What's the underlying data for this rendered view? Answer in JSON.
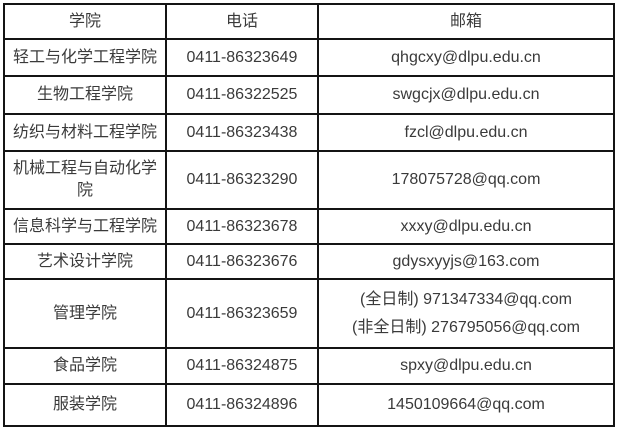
{
  "colors": {
    "background": "#ffffff",
    "border": "#141414",
    "text": "#3a3a3a"
  },
  "table": {
    "headers": [
      "学院",
      "电话",
      "邮箱"
    ],
    "rows": [
      {
        "college": "轻工与化学工程学院",
        "phone": "0411-86323649",
        "emails": [
          "qhgcxy@dlpu.edu.cn"
        ]
      },
      {
        "college": "生物工程学院",
        "phone": "0411-86322525",
        "emails": [
          "swgcjx@dlpu.edu.cn"
        ]
      },
      {
        "college": "纺织与材料工程学院",
        "phone": "0411-86323438",
        "emails": [
          "fzcl@dlpu.edu.cn"
        ]
      },
      {
        "college": "机械工程与自动化学院",
        "phone": "0411-86323290",
        "emails": [
          "178075728@qq.com"
        ]
      },
      {
        "college": "信息科学与工程学院",
        "phone": "0411-86323678",
        "emails": [
          "xxxy@dlpu.edu.cn"
        ]
      },
      {
        "college": "艺术设计学院",
        "phone": "0411-86323676",
        "emails": [
          "gdysxyyjs@163.com"
        ]
      },
      {
        "college": "管理学院",
        "phone": "0411-86323659",
        "emails": [
          "(全日制) 971347334@qq.com",
          "(非全日制) 276795056@qq.com"
        ]
      },
      {
        "college": "食品学院",
        "phone": "0411-86324875",
        "emails": [
          "spxy@dlpu.edu.cn"
        ]
      },
      {
        "college": "服装学院",
        "phone": "0411-86324896",
        "emails": [
          "1450109664@qq.com"
        ]
      }
    ]
  }
}
